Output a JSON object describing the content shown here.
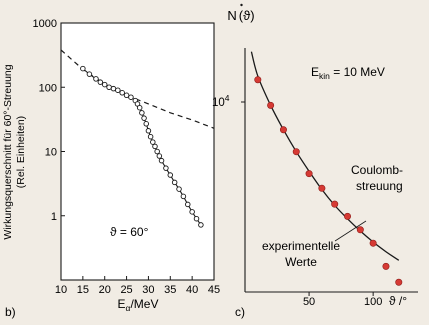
{
  "chart_data": [
    {
      "panel_label": "b)",
      "type": "scatter",
      "ylabel_lines": [
        "Wirkungsquerschnitt für 60°-Streuung",
        "(Rel. Einheiten)"
      ],
      "xlabel": "E",
      "xlabel_sub": "α",
      "xlabel_unit": "/MeV",
      "annotation": "ϑ = 60°",
      "x_scale": "linear",
      "y_scale": "log",
      "xlim": [
        10,
        45
      ],
      "ylim": [
        0.1,
        1000
      ],
      "x_ticks": [
        "10",
        "15",
        "20",
        "25",
        "30",
        "35",
        "40",
        "45"
      ],
      "y_ticks": [
        "1000",
        "100",
        "10",
        "1"
      ],
      "series": [
        {
          "style": "open-circles-with-line",
          "x": [
            15,
            16.5,
            18,
            19,
            20,
            21,
            22,
            23,
            24,
            25,
            26,
            27,
            27.5,
            28,
            28.5,
            29,
            29.5,
            30,
            30.5,
            31,
            31.5,
            32,
            32.5,
            33,
            34,
            35,
            36,
            37,
            38,
            39,
            40,
            41,
            42
          ],
          "y": [
            195,
            160,
            135,
            120,
            110,
            100,
            95,
            90,
            82,
            75,
            70,
            62,
            55,
            48,
            40,
            33,
            27,
            21,
            17,
            14,
            12,
            10,
            8.5,
            7.2,
            5.5,
            4.3,
            3.3,
            2.6,
            2.0,
            1.5,
            1.15,
            0.9,
            0.72
          ]
        },
        {
          "style": "dashed",
          "x": [
            10,
            15,
            20,
            25,
            30,
            35,
            40,
            45
          ],
          "y": [
            380,
            190,
            112,
            75,
            55,
            40,
            31,
            23
          ]
        }
      ]
    },
    {
      "panel_label": "c)",
      "type": "scatter",
      "ylabel_text": "N",
      "ylabel_arg": "(ϑ)",
      "xlabel": "ϑ /°",
      "annotation_label": "E",
      "annotation_sub": "kin",
      "annotation_value": " = 10 MeV",
      "y_tick_base": "10",
      "y_tick_exp": "4",
      "xlim": [
        0,
        135
      ],
      "x_ticks": [
        "50",
        "100"
      ],
      "curve_label_lines": [
        "Coulomb-",
        "streuung"
      ],
      "points_label_lines": [
        "experimentelle",
        "Werte"
      ],
      "series": [
        {
          "style": "red-dots",
          "x": [
            10,
            20,
            30,
            40,
            50,
            60,
            70,
            80,
            90,
            100,
            110,
            120
          ],
          "y": [
            0.87,
            0.765,
            0.665,
            0.575,
            0.485,
            0.425,
            0.36,
            0.31,
            0.255,
            0.2,
            0.105,
            0.04
          ]
        },
        {
          "style": "solid-curve",
          "x": [
            5,
            10,
            20,
            30,
            40,
            50,
            60,
            70,
            80,
            90,
            100,
            110,
            120
          ],
          "y": [
            0.985,
            0.885,
            0.765,
            0.665,
            0.575,
            0.495,
            0.42,
            0.355,
            0.3,
            0.25,
            0.205,
            0.165,
            0.13
          ]
        }
      ]
    }
  ]
}
